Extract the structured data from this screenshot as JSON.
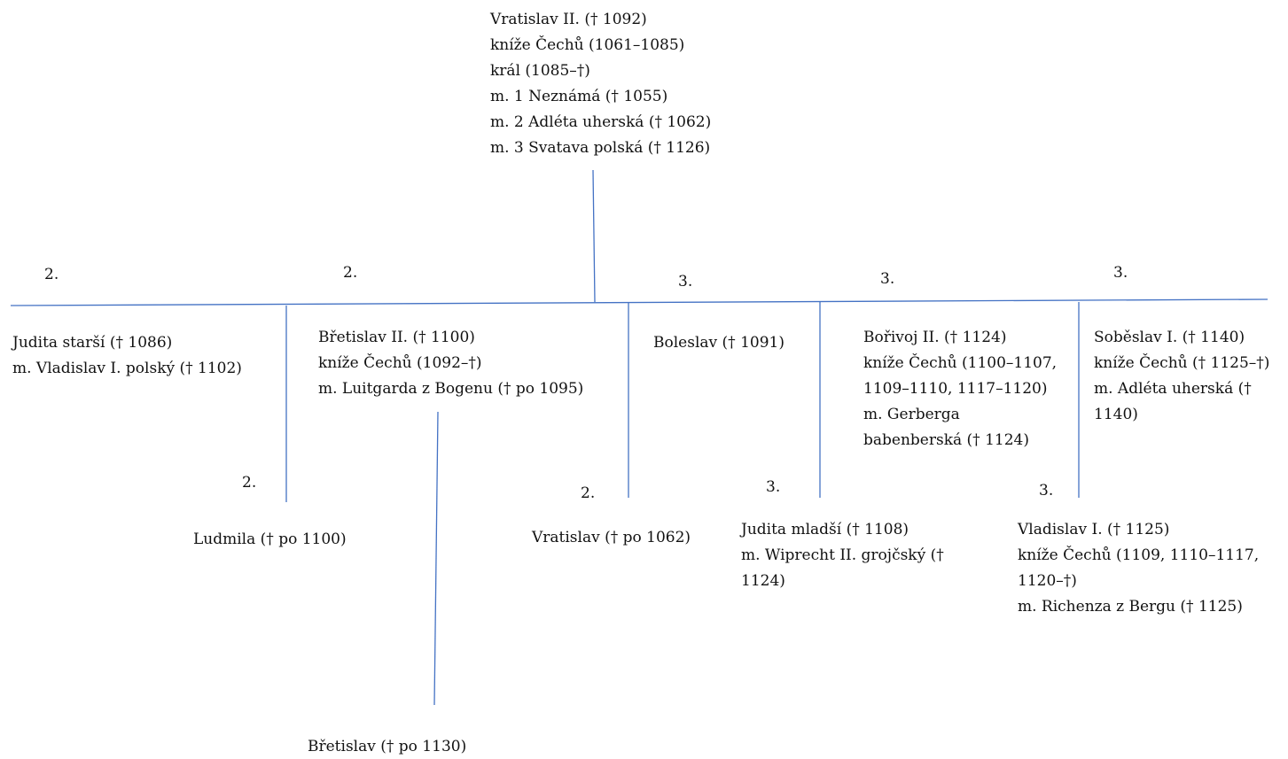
{
  "root": {
    "lines": [
      "Vratislav II. († 1092)",
      "kníže Čechů (1061–1085)",
      "král (1085–†)",
      "m. 1 Neznámá († 1055)",
      "m. 2 Adléta uherská († 1062)",
      "m. 3 Svatava polská († 1126)"
    ]
  },
  "children": [
    {
      "marriage": "2.",
      "lines": [
        "Judita starší († 1086)",
        "m. Vladislav I. polský († 1102)"
      ]
    },
    {
      "marriage": "2.",
      "lines": [
        "Břetislav II. († 1100)",
        "kníže Čechů (1092–†)",
        "m. Luitgarda z Bogenu († po 1095)"
      ]
    },
    {
      "marriage": "3.",
      "lines": [
        "Boleslav († 1091)"
      ]
    },
    {
      "marriage": "3.",
      "lines": [
        "Bořivoj II. († 1124)",
        "kníže Čechů (1100–1107,",
        "1109–1110, 1117–1120)",
        "m. Gerberga",
        "babenberská († 1124)"
      ]
    },
    {
      "marriage": "3.",
      "lines": [
        "Soběslav I. († 1140)",
        "kníže Čechů († 1125–†)",
        "m. Adléta uherská (†",
        "1140)"
      ]
    }
  ],
  "grandchildren": [
    {
      "marriage": "2.",
      "lines": [
        "Ludmila († po 1100)"
      ]
    },
    {
      "marriage": "2.",
      "lines": [
        "Vratislav († po 1062)"
      ]
    },
    {
      "marriage": "3.",
      "lines": [
        "Judita mladší († 1108)",
        "m. Wiprecht II. grojčský (†",
        "1124)"
      ]
    },
    {
      "marriage": "3.",
      "lines": [
        "Vladislav I. († 1125)",
        "kníže Čechů (1109, 1110–1117,",
        "1120–†)",
        "m. Richenza z Bergu († 1125)"
      ]
    }
  ],
  "great_grandchildren": [
    {
      "lines": [
        "Břetislav († po 1130)"
      ]
    }
  ],
  "colors": {
    "connector": "#4472C4",
    "text": "#111111"
  }
}
